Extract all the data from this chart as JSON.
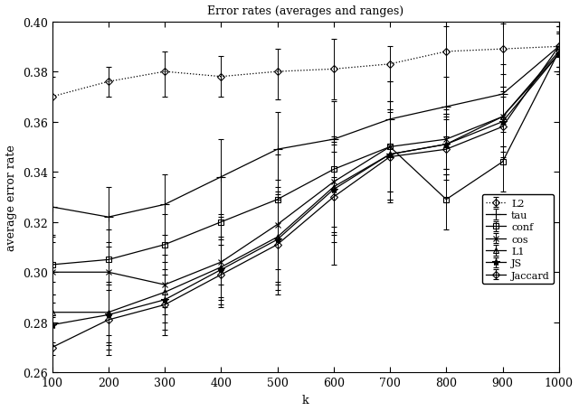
{
  "title": "Error rates (averages and ranges)",
  "xlabel": "k",
  "ylabel": "average error rate",
  "xlim": [
    100,
    1000
  ],
  "ylim": [
    0.26,
    0.4
  ],
  "xticks": [
    100,
    200,
    300,
    400,
    500,
    600,
    700,
    800,
    900,
    1000
  ],
  "yticks": [
    0.26,
    0.28,
    0.3,
    0.32,
    0.34,
    0.36,
    0.38,
    0.4
  ],
  "k": [
    100,
    200,
    300,
    400,
    500,
    600,
    700,
    800,
    900,
    1000
  ],
  "series": [
    {
      "name": "L2",
      "y": [
        0.37,
        0.376,
        0.38,
        0.378,
        0.38,
        0.381,
        0.383,
        0.388,
        0.389,
        0.39
      ],
      "yerr_lo": [
        0.01,
        0.006,
        0.01,
        0.008,
        0.011,
        0.012,
        0.007,
        0.026,
        0.01,
        0.008
      ],
      "yerr_hi": [
        0.008,
        0.006,
        0.008,
        0.008,
        0.009,
        0.012,
        0.007,
        0.01,
        0.01,
        0.008
      ],
      "marker": "D",
      "markersize": 4,
      "linestyle": "dotted",
      "fillstyle": "none",
      "color": "#000000"
    },
    {
      "name": "tau",
      "y": [
        0.326,
        0.322,
        0.327,
        0.338,
        0.349,
        0.353,
        0.361,
        0.366,
        0.371,
        0.39
      ],
      "yerr_lo": [
        0.012,
        0.012,
        0.012,
        0.015,
        0.015,
        0.015,
        0.015,
        0.012,
        0.012,
        0.008
      ],
      "yerr_hi": [
        0.012,
        0.012,
        0.012,
        0.015,
        0.015,
        0.015,
        0.015,
        0.012,
        0.012,
        0.008
      ],
      "marker": "+",
      "markersize": 7,
      "linestyle": "solid",
      "fillstyle": "full",
      "color": "#000000"
    },
    {
      "name": "conf",
      "y": [
        0.303,
        0.305,
        0.311,
        0.32,
        0.329,
        0.341,
        0.35,
        0.329,
        0.344,
        0.388
      ],
      "yerr_lo": [
        0.012,
        0.038,
        0.025,
        0.025,
        0.038,
        0.038,
        0.018,
        0.012,
        0.012,
        0.008
      ],
      "yerr_hi": [
        0.012,
        0.012,
        0.012,
        0.018,
        0.018,
        0.012,
        0.018,
        0.012,
        0.012,
        0.008
      ],
      "marker": "s",
      "markersize": 4,
      "linestyle": "solid",
      "fillstyle": "none",
      "color": "#000000"
    },
    {
      "name": "cos",
      "y": [
        0.3,
        0.3,
        0.295,
        0.304,
        0.319,
        0.336,
        0.35,
        0.353,
        0.362,
        0.388
      ],
      "yerr_lo": [
        0.012,
        0.025,
        0.012,
        0.018,
        0.018,
        0.018,
        0.018,
        0.012,
        0.012,
        0.008
      ],
      "yerr_hi": [
        0.012,
        0.012,
        0.012,
        0.018,
        0.018,
        0.018,
        0.018,
        0.012,
        0.012,
        0.008
      ],
      "marker": "x",
      "markersize": 5,
      "linestyle": "solid",
      "fillstyle": "full",
      "color": "#000000"
    },
    {
      "name": "L1",
      "y": [
        0.284,
        0.284,
        0.292,
        0.302,
        0.314,
        0.334,
        0.347,
        0.351,
        0.362,
        0.387
      ],
      "yerr_lo": [
        0.012,
        0.012,
        0.012,
        0.012,
        0.018,
        0.018,
        0.018,
        0.012,
        0.012,
        0.008
      ],
      "yerr_hi": [
        0.012,
        0.012,
        0.012,
        0.012,
        0.018,
        0.018,
        0.018,
        0.012,
        0.012,
        0.008
      ],
      "marker": "^",
      "markersize": 4,
      "linestyle": "solid",
      "fillstyle": "none",
      "color": "#000000"
    },
    {
      "name": "JS",
      "y": [
        0.279,
        0.283,
        0.289,
        0.301,
        0.313,
        0.333,
        0.347,
        0.351,
        0.36,
        0.387
      ],
      "yerr_lo": [
        0.012,
        0.012,
        0.012,
        0.012,
        0.018,
        0.018,
        0.018,
        0.012,
        0.012,
        0.008
      ],
      "yerr_hi": [
        0.012,
        0.012,
        0.012,
        0.012,
        0.018,
        0.018,
        0.018,
        0.012,
        0.012,
        0.008
      ],
      "marker": "*",
      "markersize": 6,
      "linestyle": "solid",
      "fillstyle": "full",
      "color": "#000000"
    },
    {
      "name": "Jaccard",
      "y": [
        0.27,
        0.281,
        0.287,
        0.299,
        0.311,
        0.33,
        0.346,
        0.349,
        0.358,
        0.39
      ],
      "yerr_lo": [
        0.012,
        0.012,
        0.012,
        0.012,
        0.018,
        0.018,
        0.018,
        0.012,
        0.012,
        0.008
      ],
      "yerr_hi": [
        0.012,
        0.012,
        0.012,
        0.012,
        0.018,
        0.018,
        0.018,
        0.012,
        0.012,
        0.008
      ],
      "marker": "D",
      "markersize": 4,
      "linestyle": "solid",
      "fillstyle": "none",
      "color": "#000000"
    }
  ],
  "figsize": [
    6.4,
    4.56
  ],
  "dpi": 100
}
